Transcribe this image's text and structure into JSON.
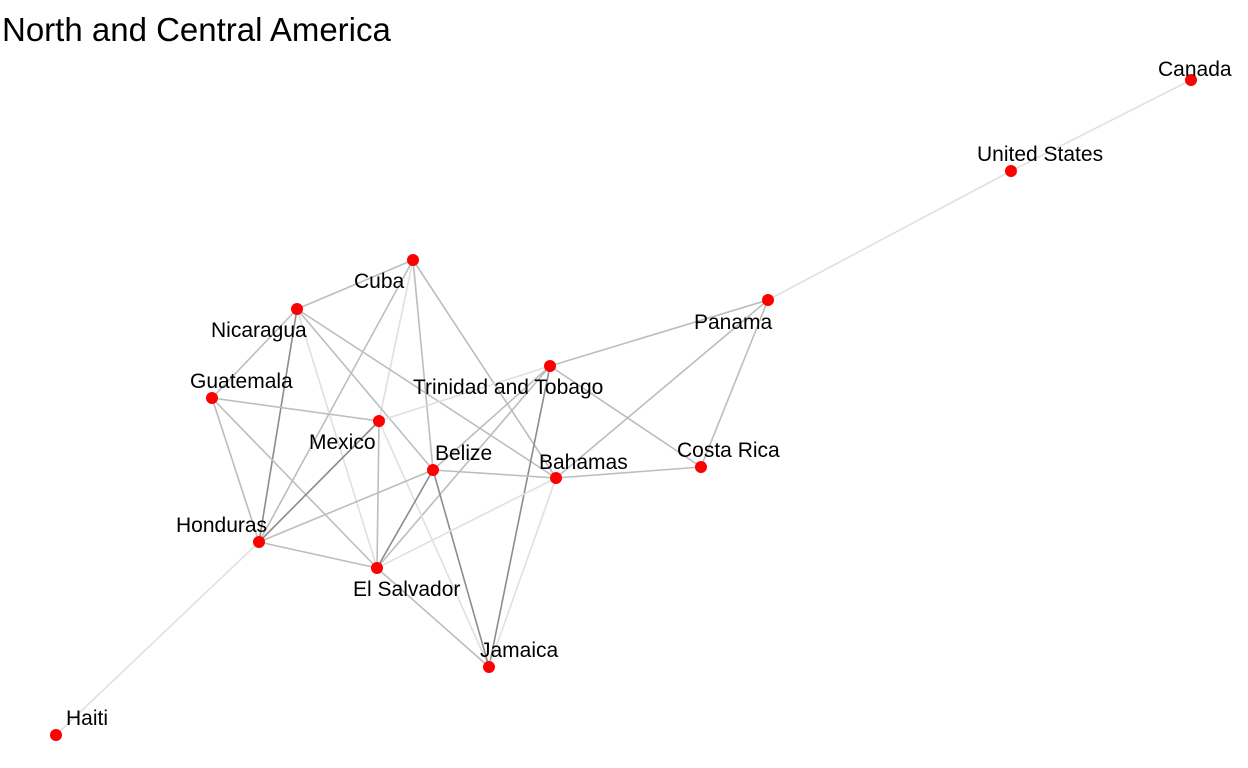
{
  "title": "North and Central America",
  "colors": {
    "node": "#ff0000",
    "edge_light": "#e0e0e0",
    "edge_mid": "#bdbdbd",
    "edge_dark": "#8c8c8c"
  },
  "nodes": [
    {
      "id": "canada",
      "label": "Canada"
    },
    {
      "id": "united-states",
      "label": "United States"
    },
    {
      "id": "panama",
      "label": "Panama"
    },
    {
      "id": "cuba",
      "label": "Cuba"
    },
    {
      "id": "nicaragua",
      "label": "Nicaragua"
    },
    {
      "id": "guatemala",
      "label": "Guatemala"
    },
    {
      "id": "trinidad-and-tobago",
      "label": "Trinidad and Tobago"
    },
    {
      "id": "mexico",
      "label": "Mexico"
    },
    {
      "id": "belize",
      "label": "Belize"
    },
    {
      "id": "bahamas",
      "label": "Bahamas"
    },
    {
      "id": "costa-rica",
      "label": "Costa Rica"
    },
    {
      "id": "honduras",
      "label": "Honduras"
    },
    {
      "id": "el-salvador",
      "label": "El Salvador"
    },
    {
      "id": "jamaica",
      "label": "Jamaica"
    },
    {
      "id": "haiti",
      "label": "Haiti"
    }
  ],
  "edges": [
    {
      "source": "canada",
      "target": "united-states",
      "tone": "light"
    },
    {
      "source": "united-states",
      "target": "panama",
      "tone": "light"
    },
    {
      "source": "panama",
      "target": "trinidad-and-tobago",
      "tone": "mid"
    },
    {
      "source": "panama",
      "target": "bahamas",
      "tone": "mid"
    },
    {
      "source": "panama",
      "target": "costa-rica",
      "tone": "mid"
    },
    {
      "source": "cuba",
      "target": "nicaragua",
      "tone": "mid"
    },
    {
      "source": "cuba",
      "target": "mexico",
      "tone": "light"
    },
    {
      "source": "cuba",
      "target": "belize",
      "tone": "mid"
    },
    {
      "source": "cuba",
      "target": "bahamas",
      "tone": "mid"
    },
    {
      "source": "cuba",
      "target": "honduras",
      "tone": "mid"
    },
    {
      "source": "nicaragua",
      "target": "guatemala",
      "tone": "mid"
    },
    {
      "source": "nicaragua",
      "target": "honduras",
      "tone": "dark"
    },
    {
      "source": "nicaragua",
      "target": "belize",
      "tone": "mid"
    },
    {
      "source": "nicaragua",
      "target": "el-salvador",
      "tone": "light"
    },
    {
      "source": "nicaragua",
      "target": "bahamas",
      "tone": "mid"
    },
    {
      "source": "guatemala",
      "target": "mexico",
      "tone": "mid"
    },
    {
      "source": "guatemala",
      "target": "honduras",
      "tone": "mid"
    },
    {
      "source": "guatemala",
      "target": "el-salvador",
      "tone": "mid"
    },
    {
      "source": "trinidad-and-tobago",
      "target": "mexico",
      "tone": "light"
    },
    {
      "source": "trinidad-and-tobago",
      "target": "el-salvador",
      "tone": "mid"
    },
    {
      "source": "trinidad-and-tobago",
      "target": "jamaica",
      "tone": "dark"
    },
    {
      "source": "trinidad-and-tobago",
      "target": "costa-rica",
      "tone": "mid"
    },
    {
      "source": "trinidad-and-tobago",
      "target": "belize",
      "tone": "mid"
    },
    {
      "source": "mexico",
      "target": "honduras",
      "tone": "dark"
    },
    {
      "source": "mexico",
      "target": "el-salvador",
      "tone": "mid"
    },
    {
      "source": "mexico",
      "target": "jamaica",
      "tone": "light"
    },
    {
      "source": "belize",
      "target": "bahamas",
      "tone": "mid"
    },
    {
      "source": "belize",
      "target": "honduras",
      "tone": "mid"
    },
    {
      "source": "belize",
      "target": "el-salvador",
      "tone": "dark"
    },
    {
      "source": "belize",
      "target": "jamaica",
      "tone": "dark"
    },
    {
      "source": "bahamas",
      "target": "costa-rica",
      "tone": "mid"
    },
    {
      "source": "bahamas",
      "target": "el-salvador",
      "tone": "light"
    },
    {
      "source": "bahamas",
      "target": "jamaica",
      "tone": "light"
    },
    {
      "source": "honduras",
      "target": "el-salvador",
      "tone": "mid"
    },
    {
      "source": "honduras",
      "target": "haiti",
      "tone": "light"
    },
    {
      "source": "el-salvador",
      "target": "jamaica",
      "tone": "mid"
    }
  ]
}
